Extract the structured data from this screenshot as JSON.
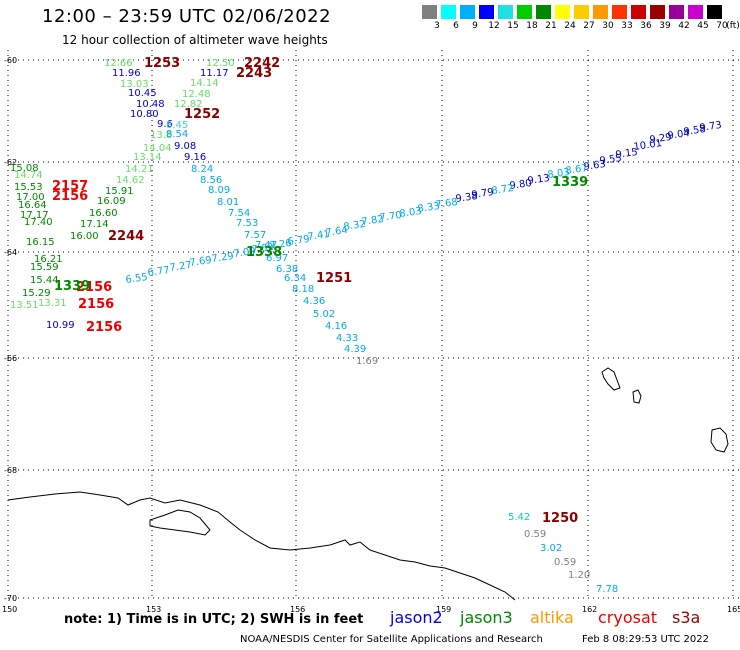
{
  "header": {
    "title": "12:00 – 23:59 UTC 02/06/2022",
    "subtitle": "12 hour collection of altimeter wave heights"
  },
  "scale": {
    "labels": [
      "3",
      "6",
      "9",
      "12",
      "15",
      "18",
      "21",
      "24",
      "27",
      "30",
      "33",
      "36",
      "39",
      "42",
      "45",
      "70"
    ],
    "unit": "(ft)",
    "colors": [
      "#808080",
      "#00ffff",
      "#00b0ff",
      "#0000ff",
      "#20e0e0",
      "#00cc00",
      "#008800",
      "#ffff00",
      "#ffcc00",
      "#ff9900",
      "#ff3300",
      "#cc0000",
      "#990000",
      "#990099",
      "#cc00cc",
      "#000000"
    ]
  },
  "axes": {
    "lat_labels": [
      "-60",
      "-62",
      "-64",
      "-66",
      "-68",
      "-70"
    ],
    "lon_labels": [
      "150",
      "153",
      "156",
      "159",
      "162",
      "165"
    ]
  },
  "tracks": [
    {
      "satellite": "jason3",
      "time": "1253",
      "time_color": "#880000",
      "values": [
        {
          "v": "12.66",
          "c": "#66dd66"
        },
        {
          "v": "11.96",
          "c": "#0000cc"
        },
        {
          "v": "13.03",
          "c": "#66dd66"
        },
        {
          "v": "10.45",
          "c": "#0000cc"
        },
        {
          "v": "10.48",
          "c": "#0000cc"
        },
        {
          "v": "10.80",
          "c": "#0000cc"
        },
        {
          "v": "9.6",
          "c": "#0000cc"
        },
        {
          "v": "13.8",
          "c": "#66dd66"
        },
        {
          "v": "14.04",
          "c": "#66dd66"
        },
        {
          "v": "13.14",
          "c": "#66dd66"
        },
        {
          "v": "14.21",
          "c": "#66dd66"
        },
        {
          "v": "14.62",
          "c": "#66dd66"
        },
        {
          "v": "15.91",
          "c": "#008800"
        },
        {
          "v": "16.09",
          "c": "#008800"
        },
        {
          "v": "16.60",
          "c": "#008800"
        },
        {
          "v": "17.14",
          "c": "#008800"
        },
        {
          "v": "16.00",
          "c": "#008800"
        }
      ]
    },
    {
      "satellite": "jason3",
      "time": "2242",
      "time_color": "#880000",
      "values": [
        {
          "v": "12.50",
          "c": "#66dd66"
        },
        {
          "v": "11.17",
          "c": "#0000cc"
        },
        {
          "v": "14.14",
          "c": "#66dd66"
        },
        {
          "v": "12.48",
          "c": "#66dd66"
        },
        {
          "v": "12.82",
          "c": "#66dd66"
        },
        {
          "v": "8.45",
          "c": "#44ccdd"
        },
        {
          "v": "8.54",
          "c": "#00aaee"
        },
        {
          "v": "9.08",
          "c": "#0000cc"
        },
        {
          "v": "9.16",
          "c": "#0000cc"
        },
        {
          "v": "8.24",
          "c": "#00aaee"
        },
        {
          "v": "8.56",
          "c": "#00aaee"
        },
        {
          "v": "8.09",
          "c": "#00aaee"
        },
        {
          "v": "8.01",
          "c": "#00aaee"
        },
        {
          "v": "7.54",
          "c": "#00aaee"
        },
        {
          "v": "7.53",
          "c": "#00aaee"
        },
        {
          "v": "7.57",
          "c": "#00aaee"
        },
        {
          "v": "7.47",
          "c": "#00aaee"
        },
        {
          "v": "6.97",
          "c": "#00aaee"
        },
        {
          "v": "6.38",
          "c": "#00aaee"
        },
        {
          "v": "6.34",
          "c": "#00aaee"
        },
        {
          "v": "8.18",
          "c": "#00aaee"
        },
        {
          "v": "4.36",
          "c": "#00aaee"
        },
        {
          "v": "5.02",
          "c": "#00aaee"
        },
        {
          "v": "4.16",
          "c": "#00aaee"
        },
        {
          "v": "4.33",
          "c": "#00aaee"
        },
        {
          "v": "4.39",
          "c": "#00aaee"
        },
        {
          "v": "1.69",
          "c": "#808080"
        }
      ]
    },
    {
      "satellite": "jason3",
      "time": "2243",
      "time_color": "#880000",
      "values": []
    },
    {
      "satellite": "jason3",
      "time": "1252",
      "time_color": "#880000",
      "values": []
    },
    {
      "satellite": "jason3",
      "time": "1251",
      "time_color": "#880000",
      "values": []
    },
    {
      "satellite": "jason3",
      "time": "2244",
      "time_color": "#880000",
      "values": []
    },
    {
      "satellite": "cryosat",
      "time": "2157",
      "time_color": "#ee0000",
      "values": [
        {
          "v": "15.08",
          "c": "#008800"
        },
        {
          "v": "14.74",
          "c": "#66dd66"
        },
        {
          "v": "15.53",
          "c": "#008800"
        },
        {
          "v": "17.00",
          "c": "#008800"
        },
        {
          "v": "16.64",
          "c": "#008800"
        },
        {
          "v": "17.17",
          "c": "#008800"
        },
        {
          "v": "17.40",
          "c": "#008800"
        },
        {
          "v": "16.15",
          "c": "#008800"
        },
        {
          "v": "16.21",
          "c": "#008800"
        },
        {
          "v": "15.59",
          "c": "#008800"
        },
        {
          "v": "15.44",
          "c": "#008800"
        },
        {
          "v": "15.29",
          "c": "#008800"
        },
        {
          "v": "13.51",
          "c": "#66dd66"
        },
        {
          "v": "13.31",
          "c": "#66dd66"
        },
        {
          "v": "10.99",
          "c": "#0000cc"
        }
      ]
    },
    {
      "satellite": "cryosat",
      "time": "2156",
      "time_color": "#ee0000",
      "values": []
    },
    {
      "satellite": "jason2",
      "time": "1339",
      "time_color": "#008800",
      "values": [
        {
          "v": "9.73",
          "c": "#0000cc"
        },
        {
          "v": "9.58",
          "c": "#0000cc"
        },
        {
          "v": "9.04",
          "c": "#0000cc"
        },
        {
          "v": "9.29",
          "c": "#0000cc"
        },
        {
          "v": "10.01",
          "c": "#0000cc"
        },
        {
          "v": "9.15",
          "c": "#0000cc"
        },
        {
          "v": "9.55",
          "c": "#0000cc"
        },
        {
          "v": "9.63",
          "c": "#0000cc"
        },
        {
          "v": "8.67",
          "c": "#00aaee"
        },
        {
          "v": "8.03",
          "c": "#00aaee"
        },
        {
          "v": "9.13",
          "c": "#0000cc"
        },
        {
          "v": "9.80",
          "c": "#0000cc"
        },
        {
          "v": "8.72",
          "c": "#00aaee"
        },
        {
          "v": "9.79",
          "c": "#0000cc"
        },
        {
          "v": "9.38",
          "c": "#0000cc"
        },
        {
          "v": "7.68",
          "c": "#00aaee"
        },
        {
          "v": "8.33",
          "c": "#00aaee"
        },
        {
          "v": "8.03",
          "c": "#00aaee"
        },
        {
          "v": "7.70",
          "c": "#00aaee"
        },
        {
          "v": "7.82",
          "c": "#00aaee"
        },
        {
          "v": "8.32",
          "c": "#00aaee"
        },
        {
          "v": "7.64",
          "c": "#00aaee"
        },
        {
          "v": "7.41",
          "c": "#00aaee"
        },
        {
          "v": "6.79",
          "c": "#00aaee"
        },
        {
          "v": "7.26",
          "c": "#00aaee"
        },
        {
          "v": "7.62",
          "c": "#00aaee"
        },
        {
          "v": "7.09",
          "c": "#00aaee"
        },
        {
          "v": "7.29",
          "c": "#00aaee"
        },
        {
          "v": "7.69",
          "c": "#00aaee"
        },
        {
          "v": "7.27",
          "c": "#00aaee"
        },
        {
          "v": "6.77",
          "c": "#00aaee"
        },
        {
          "v": "6.55",
          "c": "#00aaee"
        }
      ]
    },
    {
      "satellite": "jason2",
      "time": "1338",
      "time_color": "#008800",
      "values": []
    },
    {
      "satellite": "jason3",
      "time": "1250",
      "time_color": "#880000",
      "values": [
        {
          "v": "5.42",
          "c": "#00cccc"
        },
        {
          "v": "0.59",
          "c": "#808080"
        },
        {
          "v": "3.02",
          "c": "#00aaee"
        },
        {
          "v": "0.59",
          "c": "#808080"
        },
        {
          "v": "1.20",
          "c": "#808080"
        },
        {
          "v": "7.78",
          "c": "#00aaee"
        }
      ]
    }
  ],
  "footer": {
    "note": "note:  1) Time is in UTC;  2) SWH is in feet",
    "satellites": [
      {
        "name": "jason2",
        "color": "#0000ee"
      },
      {
        "name": "jason3",
        "color": "#008800"
      },
      {
        "name": "altika",
        "color": "#ff9900"
      },
      {
        "name": "cryosat",
        "color": "#ee0000"
      },
      {
        "name": "s3a",
        "color": "#990000"
      }
    ],
    "credit": "NOAA/NESDIS Center for Satellite Applications and Research",
    "timestamp": "Feb  8 08:29:53 UTC 2022"
  }
}
